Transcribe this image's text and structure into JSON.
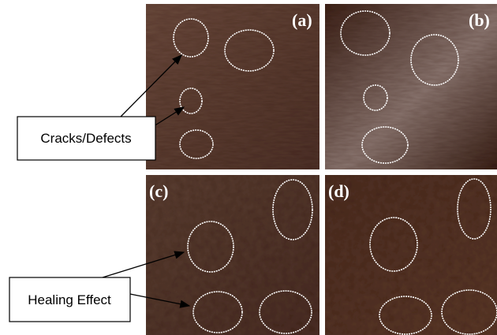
{
  "panels": [
    {
      "label": "(a)"
    },
    {
      "label": "(b)"
    },
    {
      "label": "(c)"
    },
    {
      "label": "(d)"
    }
  ],
  "callouts": [
    {
      "text": "Cracks/Defects"
    },
    {
      "text": "Healing Effect"
    }
  ]
}
